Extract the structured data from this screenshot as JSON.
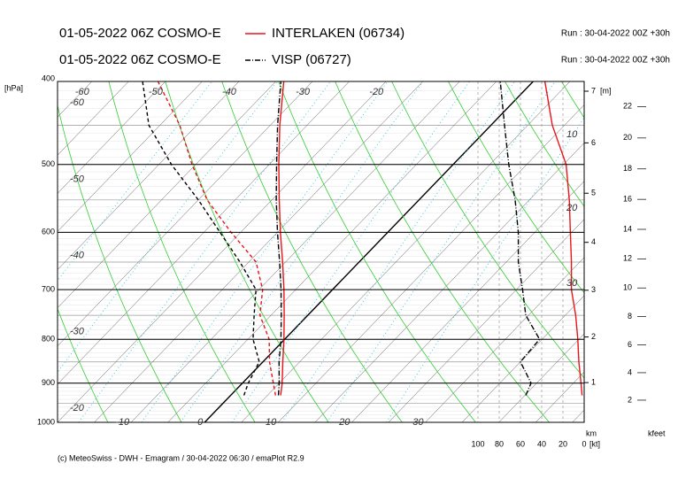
{
  "chart_data": {
    "type": "skewt",
    "ylabel": "[hPa]",
    "ylim": [
      1000,
      400
    ],
    "yticks": [
      400,
      500,
      600,
      700,
      800,
      900,
      1000
    ],
    "log_y": true,
    "xlim": [
      -20,
      51.6
    ],
    "xticks": [
      -10,
      0,
      10,
      20,
      30
    ],
    "top_ticks": [
      -60,
      -50,
      -40,
      -30,
      -20
    ],
    "left_ticks": [
      -60,
      -50,
      -40,
      -30,
      -20
    ],
    "pressure": [
      930,
      900,
      850,
      800,
      750,
      700,
      650,
      600,
      550,
      500,
      450,
      400
    ],
    "series": [
      {
        "name": "INTERLAKEN (06734)",
        "model": "01-05-2022 06Z COSMO-E",
        "run": "Run : 30-04-2022 00Z +30h",
        "color": "#e8141b",
        "style": "solid",
        "temperature": [
          6.8,
          5.4,
          2.7,
          -0.1,
          -3.2,
          -6.6,
          -10.4,
          -14.6,
          -19,
          -23.7,
          -28.7,
          -33.9
        ],
        "dewpoint": [
          6.1,
          4.2,
          0.9,
          -2.1,
          -6.5,
          -9.5,
          -14,
          -21.3,
          -28.8,
          -35.5,
          -42.3,
          -51
        ],
        "wind_speed": [
          2,
          3,
          5,
          6,
          8,
          12,
          12,
          13,
          14,
          17,
          30,
          37
        ]
      },
      {
        "name": "VISP (06727)",
        "model": "01-05-2022 06Z COSMO-E",
        "run": "Run : 30-04-2022 00Z +30h",
        "color": "#000000",
        "style": "dashdot",
        "temperature": [
          6.5,
          5,
          2.2,
          -0.5,
          -3.6,
          -7,
          -10.8,
          -15,
          -19.4,
          -24,
          -29,
          -34.3
        ],
        "dewpoint": [
          1.8,
          0.8,
          -0.5,
          -4.3,
          -7.3,
          -10.4,
          -16.2,
          -22.8,
          -30,
          -38.3,
          -46.5,
          -53.1
        ],
        "wind_speed": [
          55,
          50,
          60,
          42,
          55,
          58,
          62,
          62,
          65,
          71,
          75,
          79
        ]
      }
    ],
    "height_ticks_km": [
      1,
      2,
      3,
      4,
      5,
      6,
      7
    ],
    "height_unit": "[m]",
    "km_label": "km",
    "height_ticks_kfeet": [
      2,
      4,
      6,
      8,
      10,
      12,
      14,
      16,
      18,
      20,
      22
    ],
    "kfeet_label": "kfeet",
    "wind_lim": [
      0,
      100
    ],
    "wind_ticks": [
      100,
      80,
      60,
      40,
      20,
      0
    ],
    "wind_unit": "[kt]",
    "wind_panel_labels": [
      10,
      20,
      30
    ],
    "footer": "(c) MeteoSwiss - DWH - Emagram / 30-04-2022 06:30 / emaPlot R2.9"
  }
}
